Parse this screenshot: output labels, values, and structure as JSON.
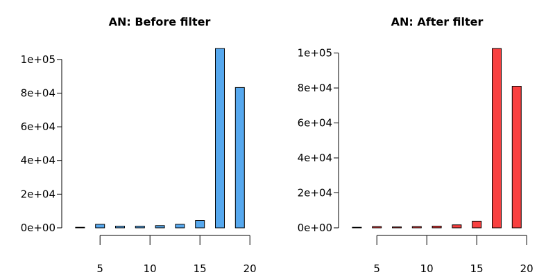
{
  "chart_data": [
    {
      "type": "bar",
      "title": "AN: Before filter",
      "xlabel": "",
      "ylabel": "",
      "x": [
        3,
        5,
        7,
        9,
        11,
        13,
        15,
        17,
        19
      ],
      "values": [
        300,
        2100,
        1000,
        1000,
        1300,
        2100,
        4300,
        106500,
        83300
      ],
      "ylim": [
        0,
        106500
      ],
      "yticks": [
        0,
        20000,
        40000,
        60000,
        80000,
        100000
      ],
      "ytick_labels": [
        "0e+00",
        "2e+04",
        "4e+04",
        "6e+04",
        "8e+04",
        "1e+05"
      ],
      "xticks": [
        5,
        10,
        15,
        20
      ],
      "xtick_labels": [
        "5",
        "10",
        "15",
        "20"
      ],
      "xlim": [
        2,
        20
      ],
      "bar_color": "#56a8ee",
      "grid": false,
      "legend": "none"
    },
    {
      "type": "bar",
      "title": "AN: After filter",
      "xlabel": "",
      "ylabel": "",
      "x": [
        3,
        5,
        7,
        9,
        11,
        13,
        15,
        17,
        19
      ],
      "values": [
        200,
        700,
        500,
        700,
        1000,
        1700,
        3800,
        102600,
        81000
      ],
      "ylim": [
        0,
        102600
      ],
      "yticks": [
        0,
        20000,
        40000,
        60000,
        80000,
        100000
      ],
      "ytick_labels": [
        "0e+00",
        "2e+04",
        "4e+04",
        "6e+04",
        "8e+04",
        "1e+05"
      ],
      "xticks": [
        5,
        10,
        15,
        20
      ],
      "xtick_labels": [
        "5",
        "10",
        "15",
        "20"
      ],
      "xlim": [
        2,
        20
      ],
      "bar_color": "#f94040",
      "grid": false,
      "legend": "none"
    }
  ]
}
